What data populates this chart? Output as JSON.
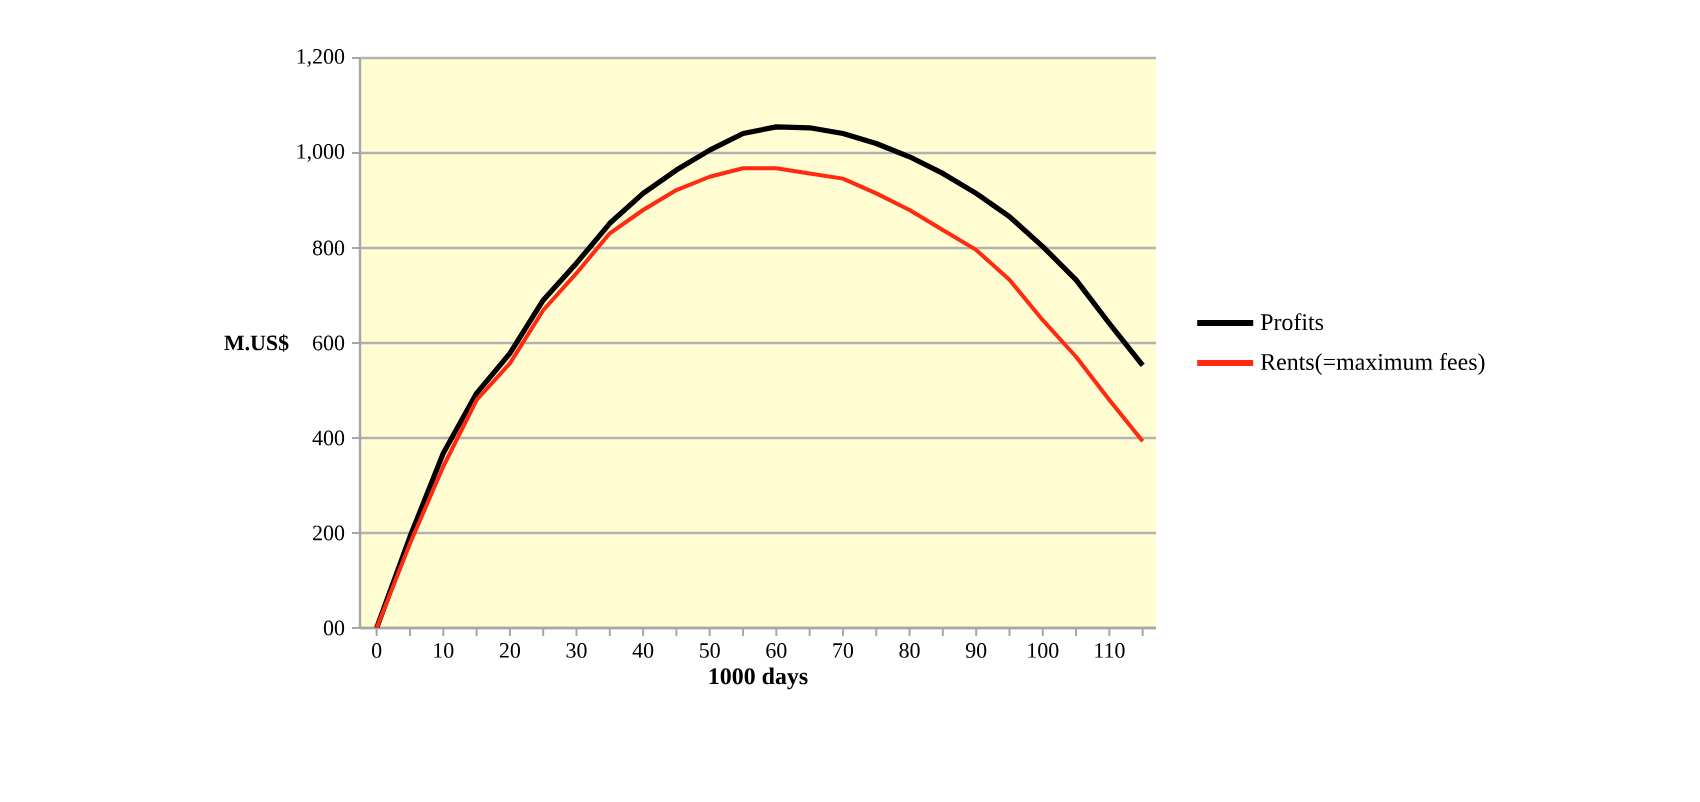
{
  "chart_data": {
    "type": "line",
    "xlabel": "1000 days",
    "ylabel": "M.US$",
    "x": [
      0,
      5,
      10,
      15,
      20,
      25,
      30,
      35,
      40,
      45,
      50,
      55,
      60,
      65,
      70,
      75,
      80,
      85,
      90,
      95,
      100,
      105,
      110,
      115
    ],
    "series": [
      {
        "name": "Profits",
        "color": "#000000",
        "values": [
          0,
          192,
          368,
          494,
          578,
          690,
          768,
          852,
          915,
          964,
          1006,
          1041,
          1055,
          1053,
          1041,
          1020,
          992,
          957,
          915,
          866,
          803,
          733,
          641,
          553
        ]
      },
      {
        "name": "Rents(=maximum fees)",
        "color": "#ff2a10",
        "values": [
          0,
          178,
          340,
          480,
          557,
          669,
          747,
          831,
          880,
          922,
          950,
          968,
          968,
          957,
          946,
          915,
          880,
          838,
          796,
          733,
          648,
          571,
          480,
          393
        ]
      }
    ],
    "xlim": [
      -2.5,
      117
    ],
    "xticks": [
      0,
      {
        "value": 5,
        "label": null
      },
      10,
      {
        "value": 15,
        "label": null
      },
      20,
      {
        "value": 25,
        "label": null
      },
      30,
      {
        "value": 35,
        "label": null
      },
      40,
      {
        "value": 45,
        "label": null
      },
      50,
      {
        "value": 55,
        "label": null
      },
      60,
      {
        "value": 65,
        "label": null
      },
      70,
      {
        "value": 75,
        "label": null
      },
      80,
      {
        "value": 85,
        "label": null
      },
      90,
      {
        "value": 95,
        "label": null
      },
      100,
      {
        "value": 105,
        "label": null
      },
      110,
      {
        "value": 115,
        "label": null
      }
    ],
    "ylim": [
      0,
      1200
    ],
    "yticks": [
      {
        "value": 0,
        "label": "00"
      },
      200,
      400,
      600,
      800,
      {
        "value": 1000,
        "label": "1,000"
      },
      {
        "value": 1200,
        "label": "1,200"
      }
    ],
    "grid": "y",
    "legend": "right",
    "marker": "none",
    "line_style": "solid"
  }
}
